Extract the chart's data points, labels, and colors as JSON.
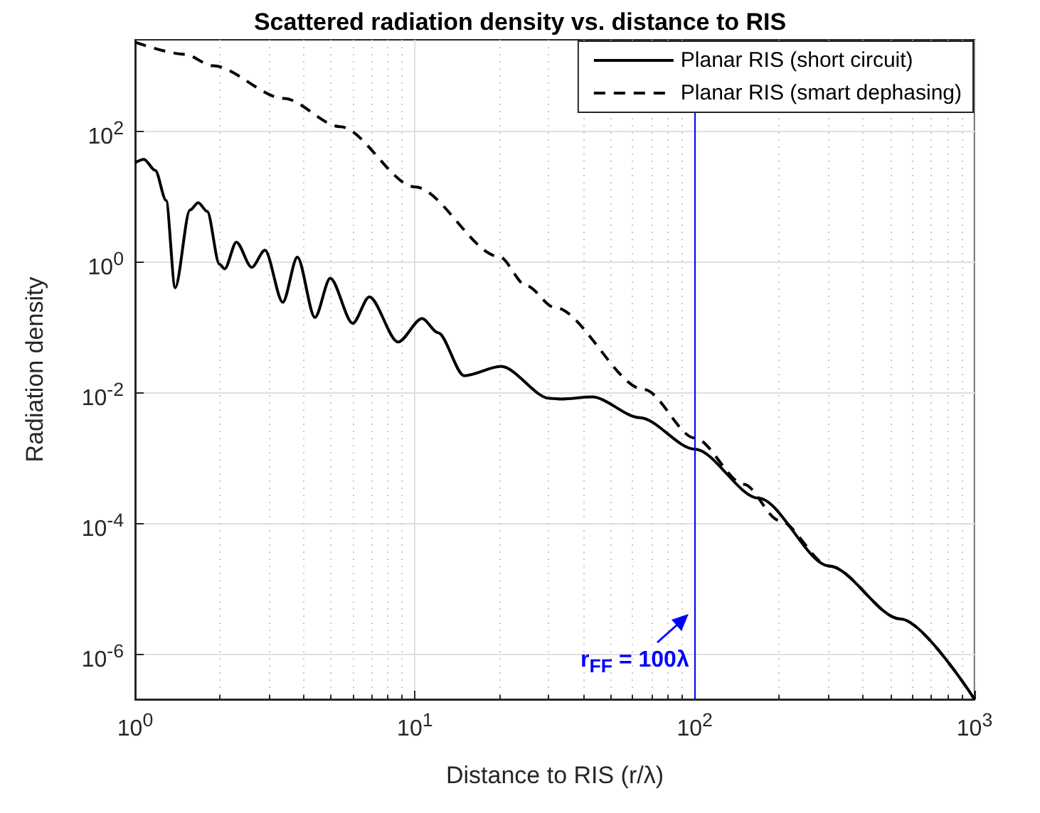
{
  "chart_data": {
    "type": "line",
    "title": "Scattered radiation density vs. distance to RIS",
    "xlabel": "Distance to RIS (r/λ)",
    "ylabel": "Radiation density",
    "log": "xy",
    "xlim": [
      1,
      1000
    ],
    "ylim": [
      2e-07,
      2500
    ],
    "xticks": [
      {
        "value": 1,
        "label": "10$^{0}$"
      },
      {
        "value": 2,
        "label": null
      },
      {
        "value": 3,
        "label": null
      },
      {
        "value": 4,
        "label": null
      },
      {
        "value": 5,
        "label": null
      },
      {
        "value": 6,
        "label": null
      },
      {
        "value": 7,
        "label": null
      },
      {
        "value": 8,
        "label": null
      },
      {
        "value": 9,
        "label": null
      },
      {
        "value": 10,
        "label": "10$^{1}$"
      },
      {
        "value": 20,
        "label": null
      },
      {
        "value": 30,
        "label": null
      },
      {
        "value": 40,
        "label": null
      },
      {
        "value": 50,
        "label": null
      },
      {
        "value": 60,
        "label": null
      },
      {
        "value": 70,
        "label": null
      },
      {
        "value": 80,
        "label": null
      },
      {
        "value": 90,
        "label": null
      },
      {
        "value": 100,
        "label": "10$^{2}$"
      },
      {
        "value": 200,
        "label": null
      },
      {
        "value": 300,
        "label": null
      },
      {
        "value": 400,
        "label": null
      },
      {
        "value": 500,
        "label": null
      },
      {
        "value": 600,
        "label": null
      },
      {
        "value": 700,
        "label": null
      },
      {
        "value": 800,
        "label": null
      },
      {
        "value": 900,
        "label": null
      },
      {
        "value": 1000,
        "label": "10$^{3}$"
      }
    ],
    "yticks": [
      {
        "value": 1e-06,
        "label": "10$^{-6}$"
      },
      {
        "value": 0.0001,
        "label": "10$^{-4}$"
      },
      {
        "value": 0.01,
        "label": "10$^{-2}$"
      },
      {
        "value": 1,
        "label": "10$^{0}$"
      },
      {
        "value": 100,
        "label": "10$^{2}$"
      }
    ],
    "grid": true,
    "legend": "top right",
    "marker": "none",
    "series": [
      {
        "name": "Planar RIS (short circuit)",
        "color": "#000000",
        "line_style": "solid",
        "x": [
          1,
          1.075,
          1.18,
          1.29,
          1.39,
          1.57,
          1.68,
          1.81,
          2.0,
          2.09,
          2.3,
          2.61,
          2.91,
          3.37,
          3.8,
          4.39,
          4.98,
          5.99,
          6.87,
          8.7,
          10.6,
          12.1,
          15,
          20.3,
          30.3,
          33.4,
          43,
          63.6,
          100,
          169,
          302,
          543,
          1000
        ],
        "values": [
          33,
          37,
          25,
          8.7,
          0.4,
          6.2,
          8,
          5.9,
          0.92,
          0.78,
          2.0,
          0.82,
          1.5,
          0.24,
          1.18,
          0.14,
          0.56,
          0.114,
          0.29,
          0.059,
          0.135,
          0.082,
          0.018,
          0.025,
          0.0081,
          0.0079,
          0.0085,
          0.0041,
          0.00135,
          0.00024,
          2.2e-05,
          3.4e-06,
          2e-07
        ]
      },
      {
        "name": "Planar RIS (smart dephasing)",
        "color": "#000000",
        "line_style": "dashed",
        "x": [
          1,
          1.5,
          1.9,
          3.4,
          5.4,
          10,
          20,
          25,
          31.5,
          66,
          100,
          150,
          200,
          302,
          543,
          1000
        ],
        "values": [
          2300,
          1500,
          1000,
          316,
          117,
          14,
          1.2,
          0.43,
          0.2,
          0.011,
          0.002,
          0.00039,
          0.00011,
          2.2e-05,
          3.4e-06,
          2e-07
        ]
      }
    ],
    "ref_lines": [
      {
        "axis": "x",
        "value": 100,
        "label": "r$_{FF}$ = 100λ",
        "color": "#0000ff"
      }
    ]
  }
}
